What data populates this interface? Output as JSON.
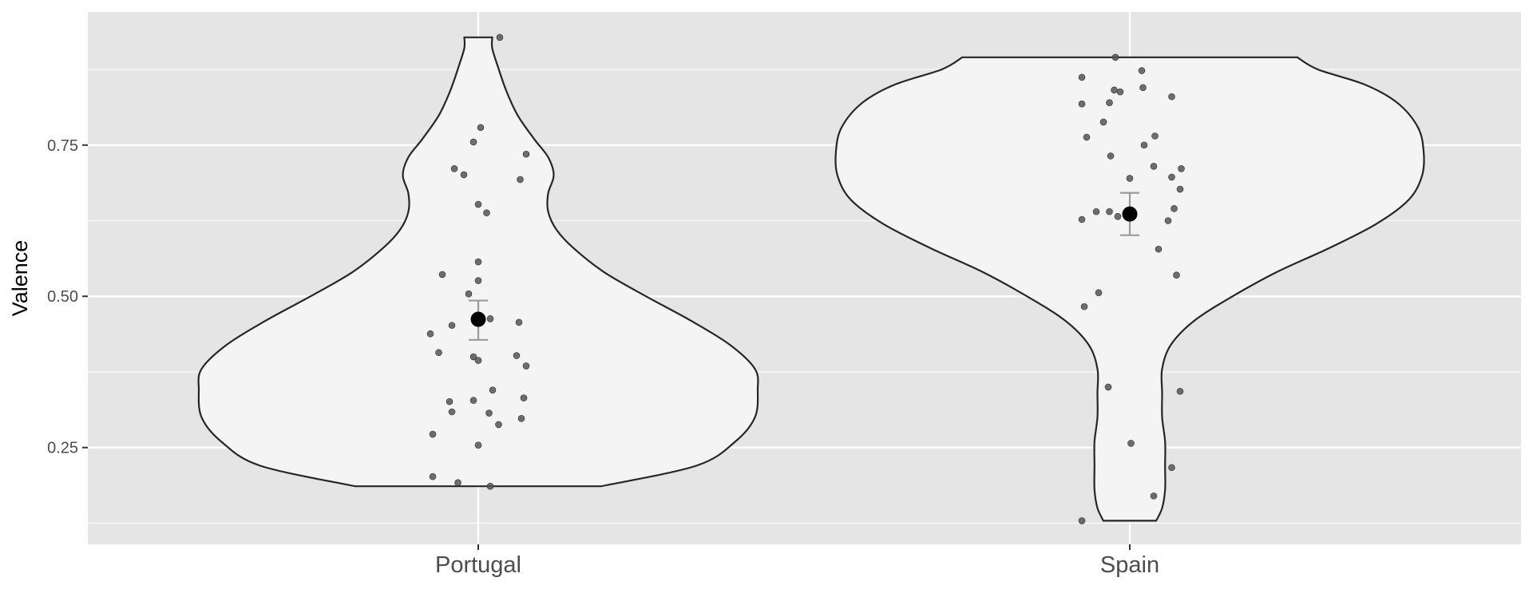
{
  "chart_data": {
    "type": "violin",
    "title": "",
    "xlabel": "",
    "ylabel": "Valence",
    "ylim": [
      0.09,
      0.97
    ],
    "y_ticks": [
      0.25,
      0.5,
      0.75
    ],
    "y_tick_labels": [
      "0.25",
      "0.50",
      "0.75"
    ],
    "grid": true,
    "legend": "none",
    "categories": [
      "Portugal",
      "Spain"
    ],
    "colors": {
      "panel": "#e5e5e5",
      "grid": "#ffffff",
      "violin_fill": "#f4f4f4",
      "violin_stroke": "#262626",
      "jitter_point": "#555555",
      "mean_point": "#000000",
      "error_bar": "#9a9a9a"
    },
    "groups": [
      {
        "name": "Portugal",
        "mean": 0.462,
        "error_low": 0.428,
        "error_high": 0.493,
        "violin_min": 0.186,
        "violin_max": 0.928,
        "density_profile": [
          [
            0.186,
            0.44
          ],
          [
            0.22,
            0.78
          ],
          [
            0.26,
            0.92
          ],
          [
            0.3,
            0.99
          ],
          [
            0.345,
            1.0
          ],
          [
            0.38,
            0.99
          ],
          [
            0.42,
            0.9
          ],
          [
            0.46,
            0.76
          ],
          [
            0.5,
            0.6
          ],
          [
            0.54,
            0.45
          ],
          [
            0.58,
            0.34
          ],
          [
            0.61,
            0.28
          ],
          [
            0.64,
            0.25
          ],
          [
            0.67,
            0.25
          ],
          [
            0.7,
            0.27
          ],
          [
            0.73,
            0.25
          ],
          [
            0.76,
            0.2
          ],
          [
            0.8,
            0.14
          ],
          [
            0.84,
            0.1
          ],
          [
            0.88,
            0.07
          ],
          [
            0.91,
            0.05
          ],
          [
            0.928,
            0.05
          ]
        ],
        "points": [
          [
            0.09,
            0.928
          ],
          [
            0.01,
            0.779
          ],
          [
            -0.02,
            0.755
          ],
          [
            0.2,
            0.735
          ],
          [
            -0.1,
            0.711
          ],
          [
            0.175,
            0.693
          ],
          [
            -0.06,
            0.701
          ],
          [
            0.0,
            0.652
          ],
          [
            0.035,
            0.638
          ],
          [
            0.0,
            0.557
          ],
          [
            -0.15,
            0.536
          ],
          [
            0.0,
            0.526
          ],
          [
            -0.04,
            0.504
          ],
          [
            0.05,
            0.463
          ],
          [
            0.17,
            0.457
          ],
          [
            -0.11,
            0.452
          ],
          [
            -0.2,
            0.438
          ],
          [
            -0.165,
            0.407
          ],
          [
            -0.02,
            0.4
          ],
          [
            0.0,
            0.394
          ],
          [
            0.16,
            0.402
          ],
          [
            0.2,
            0.385
          ],
          [
            0.06,
            0.345
          ],
          [
            0.19,
            0.332
          ],
          [
            -0.12,
            0.326
          ],
          [
            -0.02,
            0.328
          ],
          [
            -0.11,
            0.309
          ],
          [
            0.045,
            0.307
          ],
          [
            0.085,
            0.288
          ],
          [
            0.18,
            0.298
          ],
          [
            -0.19,
            0.272
          ],
          [
            0.0,
            0.254
          ],
          [
            -0.19,
            0.202
          ],
          [
            -0.085,
            0.192
          ],
          [
            0.05,
            0.186
          ]
        ]
      },
      {
        "name": "Spain",
        "mean": 0.636,
        "error_low": 0.601,
        "error_high": 0.671,
        "violin_min": 0.129,
        "violin_max": 0.895,
        "density_profile": [
          [
            0.129,
            0.09
          ],
          [
            0.15,
            0.11
          ],
          [
            0.18,
            0.12
          ],
          [
            0.22,
            0.12
          ],
          [
            0.26,
            0.12
          ],
          [
            0.3,
            0.11
          ],
          [
            0.34,
            0.11
          ],
          [
            0.38,
            0.11
          ],
          [
            0.42,
            0.14
          ],
          [
            0.46,
            0.22
          ],
          [
            0.5,
            0.35
          ],
          [
            0.54,
            0.5
          ],
          [
            0.58,
            0.68
          ],
          [
            0.62,
            0.84
          ],
          [
            0.66,
            0.95
          ],
          [
            0.7,
            0.995
          ],
          [
            0.74,
            1.0
          ],
          [
            0.78,
            0.98
          ],
          [
            0.82,
            0.91
          ],
          [
            0.85,
            0.8
          ],
          [
            0.875,
            0.64
          ],
          [
            0.895,
            0.57
          ]
        ],
        "points": [
          [
            -0.06,
            0.895
          ],
          [
            -0.2,
            0.862
          ],
          [
            0.05,
            0.873
          ],
          [
            -0.065,
            0.841
          ],
          [
            -0.04,
            0.838
          ],
          [
            0.055,
            0.845
          ],
          [
            -0.085,
            0.82
          ],
          [
            -0.2,
            0.818
          ],
          [
            0.175,
            0.83
          ],
          [
            -0.11,
            0.788
          ],
          [
            -0.18,
            0.763
          ],
          [
            0.105,
            0.765
          ],
          [
            0.06,
            0.75
          ],
          [
            -0.08,
            0.732
          ],
          [
            0.1,
            0.715
          ],
          [
            0.215,
            0.711
          ],
          [
            0.175,
            0.697
          ],
          [
            0.0,
            0.695
          ],
          [
            0.21,
            0.677
          ],
          [
            -0.14,
            0.64
          ],
          [
            -0.085,
            0.64
          ],
          [
            0.185,
            0.645
          ],
          [
            -0.05,
            0.632
          ],
          [
            0.16,
            0.625
          ],
          [
            -0.2,
            0.627
          ],
          [
            0.12,
            0.578
          ],
          [
            0.195,
            0.535
          ],
          [
            -0.13,
            0.506
          ],
          [
            -0.19,
            0.483
          ],
          [
            -0.09,
            0.35
          ],
          [
            0.21,
            0.343
          ],
          [
            0.005,
            0.257
          ],
          [
            0.175,
            0.217
          ],
          [
            0.1,
            0.17
          ],
          [
            -0.2,
            0.129
          ]
        ]
      }
    ]
  }
}
